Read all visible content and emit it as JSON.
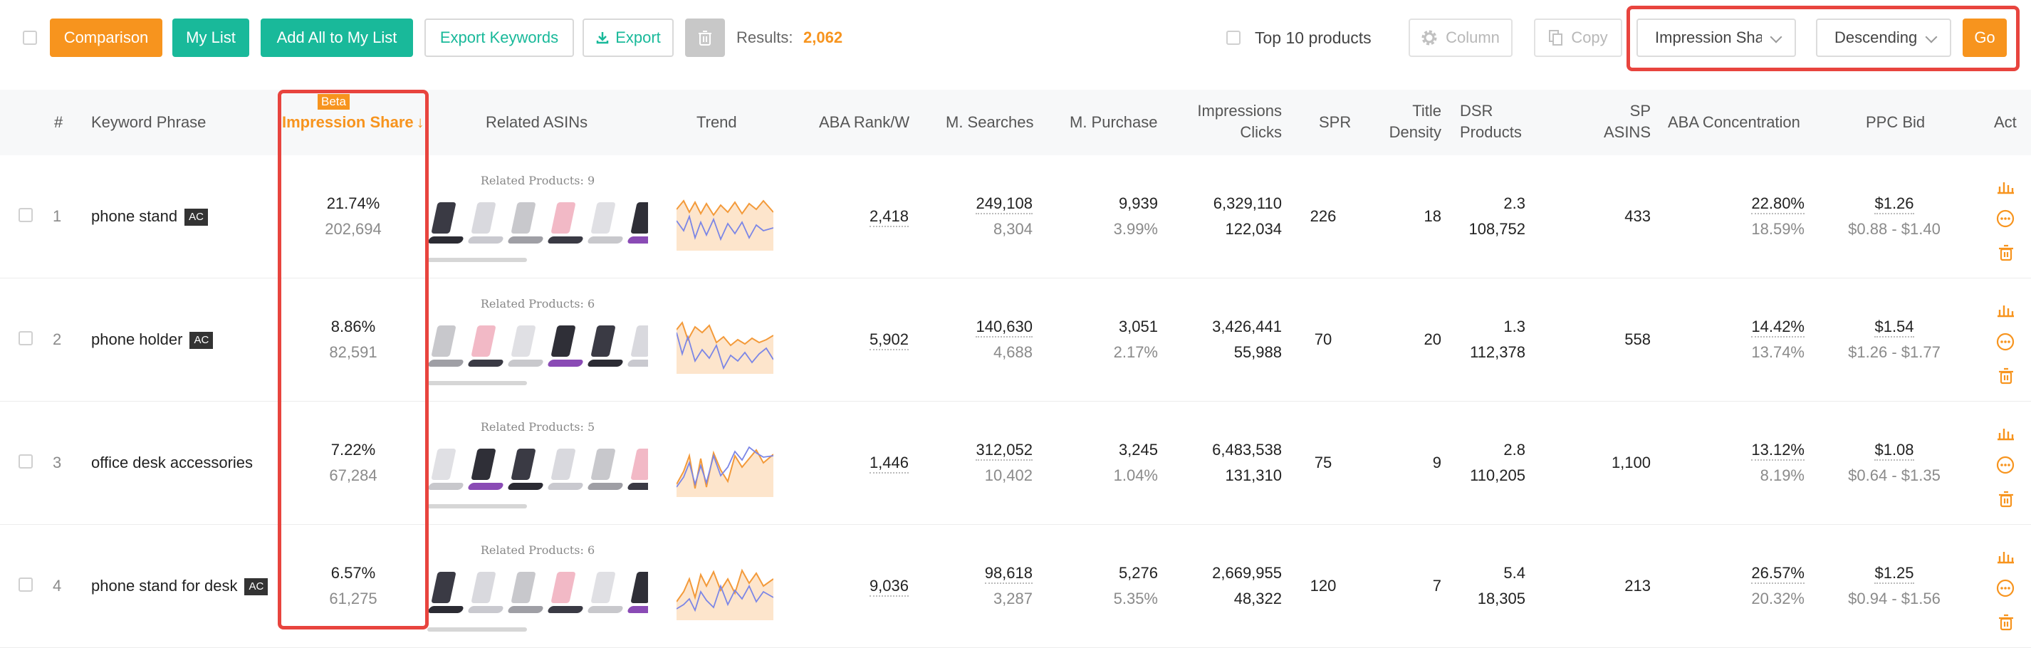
{
  "toolbar": {
    "comparison": "Comparison",
    "my_list": "My List",
    "add_all": "Add All to My List",
    "export_keywords": "Export Keywords",
    "export": "Export",
    "results_label": "Results:",
    "results_count": "2,062",
    "top10_label": "Top 10 products",
    "column": "Column",
    "copy": "Copy",
    "sort_field": "Impression Share",
    "sort_order": "Descending",
    "go": "Go"
  },
  "colors": {
    "orange": "#f7941e",
    "teal": "#19b99a",
    "highlight_red": "#e8443e",
    "trend_fill": "#fde5cc",
    "trend_orange": "#f39a3a",
    "trend_blue": "#7b86e6"
  },
  "header": {
    "num": "#",
    "keyword": "Keyword Phrase",
    "beta": "Beta",
    "impression_share": "Impression Share",
    "sort_arrow": "↓",
    "related_asins": "Related ASINs",
    "trend": "Trend",
    "aba_rank": "ABA Rank/W",
    "m_searches": "M. Searches",
    "m_purchase": "M. Purchase",
    "impressions": "Impressions",
    "clicks": "Clicks",
    "spr": "SPR",
    "title": "Title",
    "density": "Density",
    "dsr": "DSR",
    "products": "Products",
    "sp": "SP",
    "asins": "ASINS",
    "aba_concentration": "ABA Concentration",
    "ppc_bid": "PPC Bid",
    "act": "Act"
  },
  "rows": [
    {
      "num": "1",
      "keyword": "phone stand",
      "badge": "AC",
      "share": "21.74%",
      "share_sub": "202,694",
      "related": "Related Products: 9",
      "aba_rank": "2,418",
      "searches": "249,108",
      "searches_sub": "8,304",
      "purchase": "9,939",
      "purchase_sub": "3.99%",
      "impressions": "6,329,110",
      "clicks": "122,034",
      "spr": "226",
      "title_density": "18",
      "dsr": "2.3",
      "products": "108,752",
      "sp_asins": "433",
      "conc": "22.80%",
      "conc_sub": "18.59%",
      "bid": "$1.26",
      "bid_range": "$0.88 - $1.40"
    },
    {
      "num": "2",
      "keyword": "phone holder",
      "badge": "AC",
      "share": "8.86%",
      "share_sub": "82,591",
      "related": "Related Products: 6",
      "aba_rank": "5,902",
      "searches": "140,630",
      "searches_sub": "4,688",
      "purchase": "3,051",
      "purchase_sub": "2.17%",
      "impressions": "3,426,441",
      "clicks": "55,988",
      "spr": "70",
      "title_density": "20",
      "dsr": "1.3",
      "products": "112,378",
      "sp_asins": "558",
      "conc": "14.42%",
      "conc_sub": "13.74%",
      "bid": "$1.54",
      "bid_range": "$1.26 - $1.77"
    },
    {
      "num": "3",
      "keyword": "office desk accessories",
      "badge": "",
      "share": "7.22%",
      "share_sub": "67,284",
      "related": "Related Products: 5",
      "aba_rank": "1,446",
      "searches": "312,052",
      "searches_sub": "10,402",
      "purchase": "3,245",
      "purchase_sub": "1.04%",
      "impressions": "6,483,538",
      "clicks": "131,310",
      "spr": "75",
      "title_density": "9",
      "dsr": "2.8",
      "products": "110,205",
      "sp_asins": "1,100",
      "conc": "13.12%",
      "conc_sub": "8.19%",
      "bid": "$1.08",
      "bid_range": "$0.64 - $1.35"
    },
    {
      "num": "4",
      "keyword": "phone stand for desk",
      "badge": "AC",
      "share": "6.57%",
      "share_sub": "61,275",
      "related": "Related Products: 6",
      "aba_rank": "9,036",
      "searches": "98,618",
      "searches_sub": "3,287",
      "purchase": "5,276",
      "purchase_sub": "5.35%",
      "impressions": "2,669,955",
      "clicks": "48,322",
      "spr": "120",
      "title_density": "7",
      "dsr": "5.4",
      "products": "18,305",
      "sp_asins": "213",
      "conc": "26.57%",
      "conc_sub": "20.32%",
      "bid": "$1.25",
      "bid_range": "$0.94 - $1.56"
    }
  ]
}
